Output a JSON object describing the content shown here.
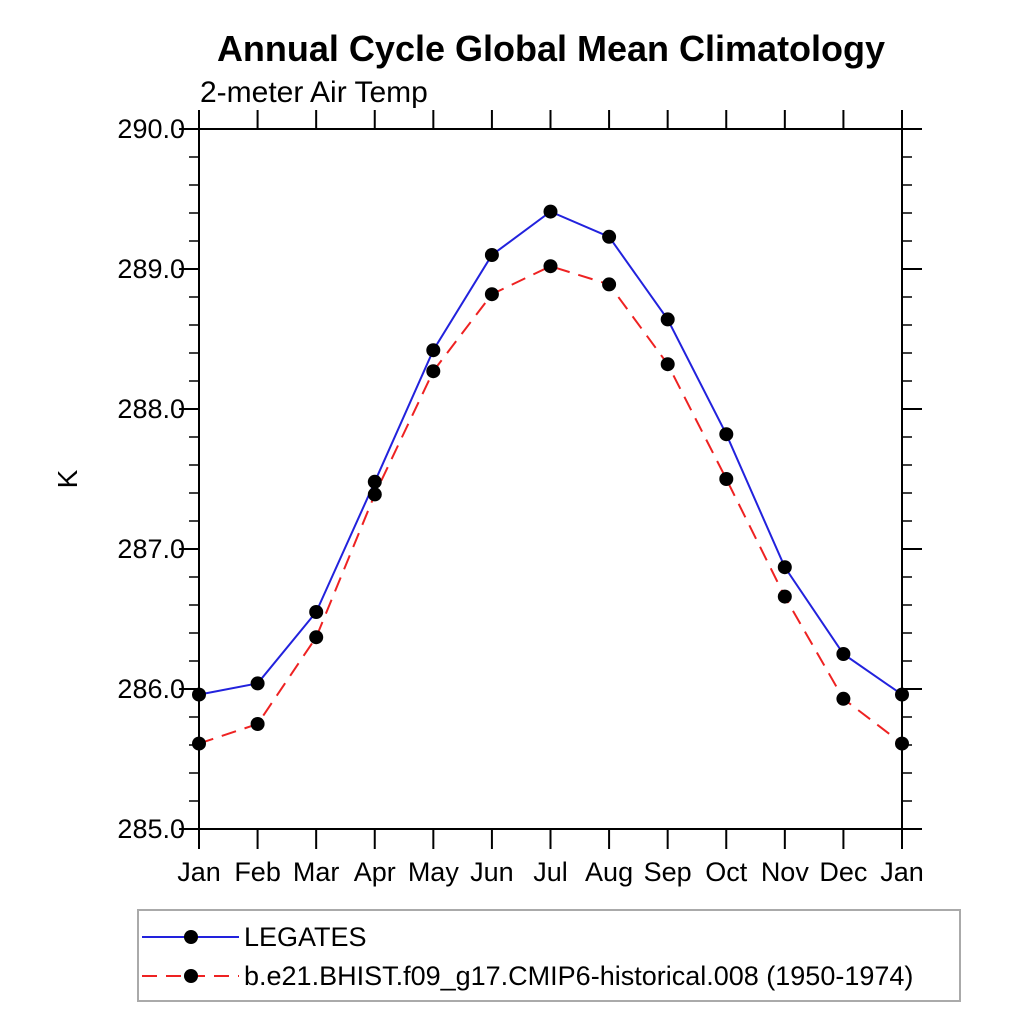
{
  "chart_data": {
    "type": "line",
    "title": "Annual Cycle Global Mean Climatology",
    "subtitle": "2-meter Air Temp",
    "ylabel": "K",
    "categories": [
      "Jan",
      "Feb",
      "Mar",
      "Apr",
      "May",
      "Jun",
      "Jul",
      "Aug",
      "Sep",
      "Oct",
      "Nov",
      "Dec",
      "Jan"
    ],
    "ylim": [
      285.0,
      290.0
    ],
    "y_major_tick_step": 1.0,
    "y_minor_tick_step": 0.2,
    "y_tick_labels": [
      "290.0",
      "289.0",
      "288.0",
      "287.0",
      "286.0",
      "285.0"
    ],
    "grid": false,
    "legend_position": "bottom-left",
    "axis_color": "#000000",
    "marker_color": "#000000",
    "series": [
      {
        "name": "LEGATES",
        "color": "#2222dd",
        "line_style": "solid",
        "marker": "filled-circle",
        "values": [
          285.96,
          286.04,
          286.55,
          287.48,
          288.42,
          289.1,
          289.41,
          289.23,
          288.64,
          287.82,
          286.87,
          286.25,
          285.96
        ]
      },
      {
        "name": "b.e21.BHIST.f09_g17.CMIP6-historical.008 (1950-1974)",
        "color": "#ee2222",
        "line_style": "dashed",
        "marker": "filled-circle",
        "values": [
          285.61,
          285.75,
          286.37,
          287.39,
          288.27,
          288.82,
          289.02,
          288.89,
          288.32,
          287.5,
          286.66,
          285.93,
          285.61
        ]
      }
    ]
  }
}
